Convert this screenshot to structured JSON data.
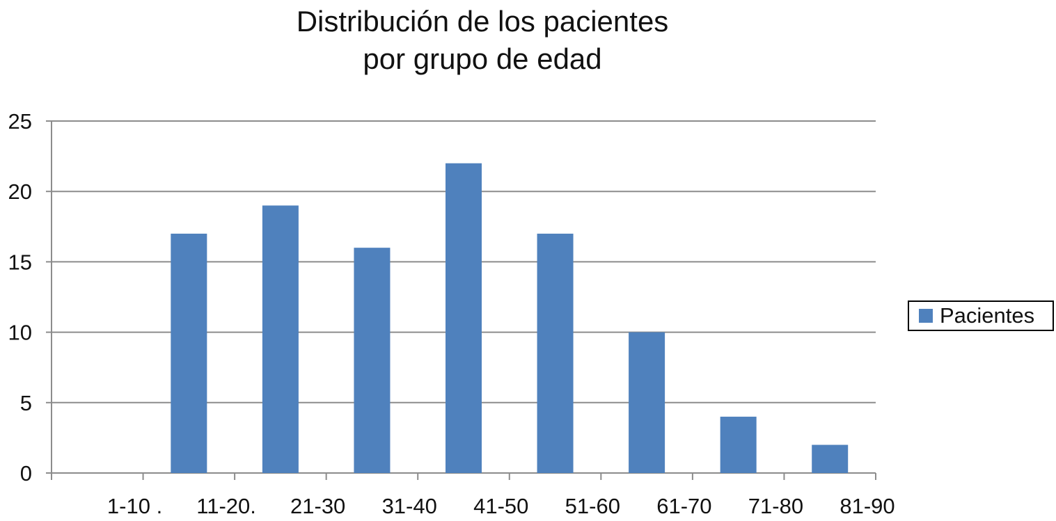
{
  "chart_data": {
    "type": "bar",
    "title_lines": [
      "Distribución de los pacientes",
      "por grupo de edad"
    ],
    "categories": [
      "1-10 .",
      "11-20.",
      "21-30",
      "31-40",
      "41-50",
      "51-60",
      "61-70",
      "71-80",
      "81-90"
    ],
    "series": [
      {
        "name": "Pacientes",
        "values": [
          0,
          17,
          19,
          16,
          22,
          17,
          10,
          4,
          2
        ]
      }
    ],
    "y_ticks": [
      0,
      5,
      10,
      15,
      20,
      25
    ],
    "ylim": [
      0,
      25
    ],
    "xlabel": "",
    "ylabel": "",
    "grid": true,
    "legend_position": "right",
    "colors": {
      "bar": "#4f81bd",
      "grid": "#8c8c8c",
      "axis": "#8c8c8c"
    }
  }
}
